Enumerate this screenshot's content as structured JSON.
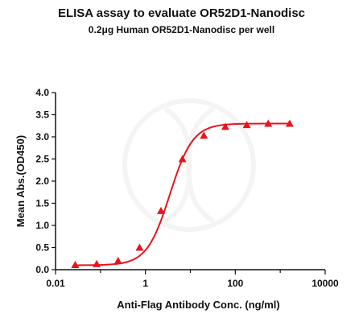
{
  "chart_data": {
    "type": "scatter",
    "title": "ELISA assay to evaluate OR52D1-Nanodisc",
    "subtitle": "0.2μg Human OR52D1-Nanodisc per well",
    "xlabel": "Anti-Flag Antibody Conc. (ng/ml)",
    "ylabel": "Mean Abs.(OD450)",
    "x_scale": "log10",
    "xlim": [
      0.01,
      10000
    ],
    "ylim": [
      0,
      4.0
    ],
    "x_ticks": [
      "0.01",
      "1",
      "100",
      "10000"
    ],
    "y_ticks": [
      "0.0",
      "0.5",
      "1.0",
      "1.5",
      "2.0",
      "2.5",
      "3.0",
      "3.5",
      "4.0"
    ],
    "series": [
      {
        "marker": "triangle",
        "color": "#e8141b",
        "x": [
          0.0274,
          0.0823,
          0.247,
          0.741,
          2.22,
          6.67,
          20,
          60,
          180,
          540,
          1620
        ],
        "y": [
          0.11,
          0.13,
          0.2,
          0.5,
          1.33,
          2.5,
          3.03,
          3.23,
          3.27,
          3.3,
          3.3
        ]
      }
    ],
    "fit_curve": {
      "color": "#e8141b",
      "bottom": 0.1,
      "top": 3.3,
      "ec50": 3.5,
      "hill": 1.7
    },
    "grid": false,
    "legend": "none"
  }
}
